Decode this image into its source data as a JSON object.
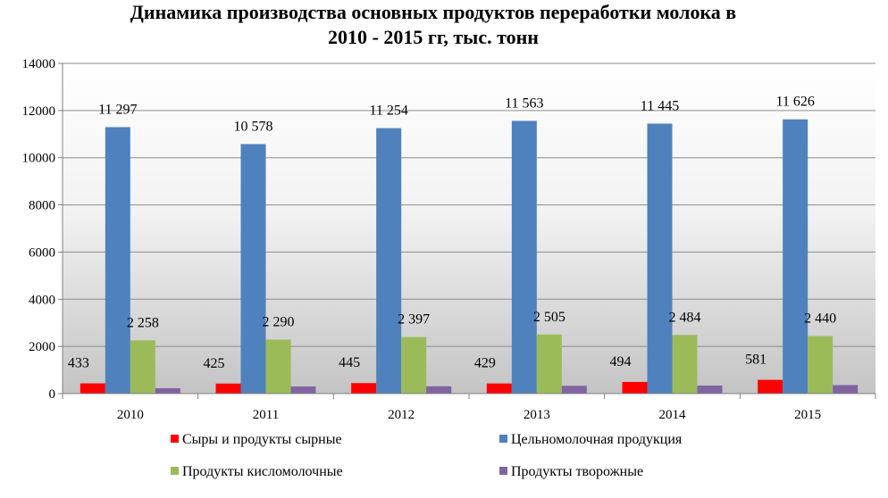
{
  "chart_data": {
    "type": "bar",
    "title": "Динамика производства основных продуктов переработки молока в 2010 - 2015 гг, тыс. тонн",
    "title_lines": [
      "Динамика производства основных продуктов переработки молока в",
      "2010 - 2015 гг, тыс. тонн"
    ],
    "xlabel": "",
    "ylabel": "",
    "categories": [
      "2010",
      "2011",
      "2012",
      "2013",
      "2014",
      "2015"
    ],
    "ylim": [
      0,
      14000
    ],
    "yticks": [
      0,
      2000,
      4000,
      6000,
      8000,
      10000,
      12000,
      14000
    ],
    "ytick_labels": [
      "0",
      "2000",
      "4000",
      "6000",
      "8000",
      "10000",
      "12000",
      "14000"
    ],
    "grid": true,
    "legend_position": "bottom",
    "series": [
      {
        "name": "Сыры и продукты сырные",
        "color": "#ff0000",
        "values": [
          433,
          425,
          445,
          429,
          494,
          581
        ],
        "labels": [
          "433",
          "425",
          "445",
          "429",
          "494",
          "581"
        ]
      },
      {
        "name": "Цельномолочная продукция",
        "color": "#4f81bd",
        "values": [
          11297,
          10578,
          11254,
          11563,
          11445,
          11626
        ],
        "labels": [
          "11 297",
          "10 578",
          "11 254",
          "11 563",
          "11 445",
          "11 626"
        ]
      },
      {
        "name": "Продукты кисломолочные",
        "color": "#9bbb59",
        "values": [
          2258,
          2290,
          2397,
          2505,
          2484,
          2440
        ],
        "labels": [
          "2 258",
          "2 290",
          "2 397",
          "2 505",
          "2 484",
          "2 440"
        ]
      },
      {
        "name": "Продукты творожные",
        "color": "#8064a2",
        "values": [
          230,
          300,
          310,
          330,
          340,
          360
        ],
        "labels": []
      }
    ]
  }
}
